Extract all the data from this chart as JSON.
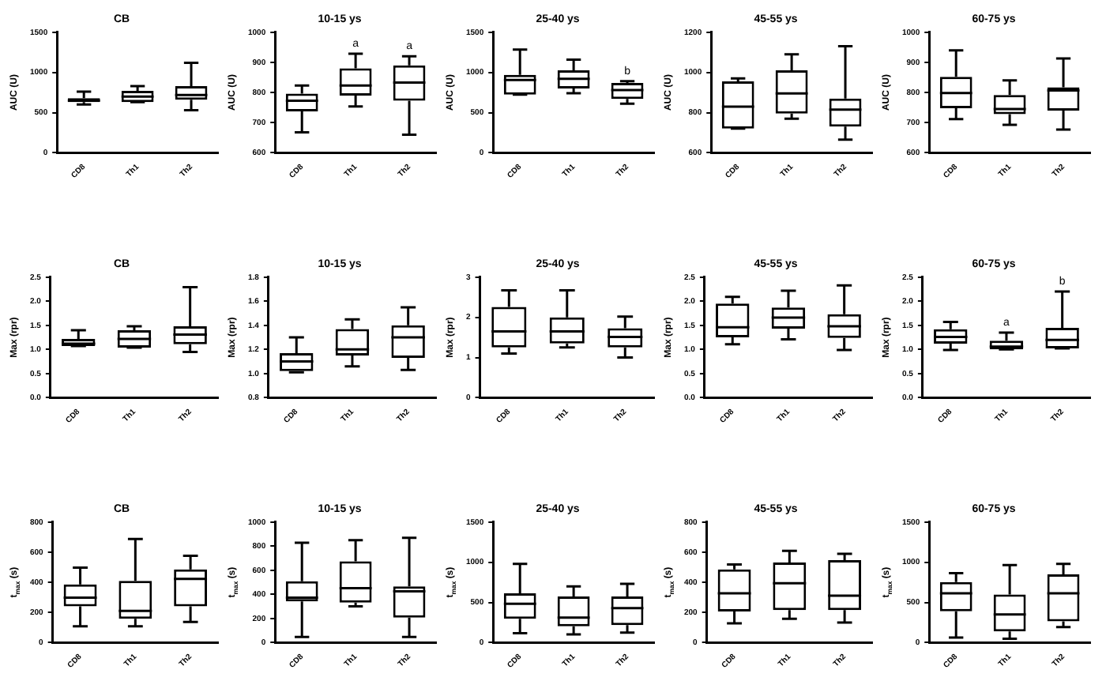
{
  "chart_data": [
    {
      "type": "box",
      "title": "CB",
      "ylabel": "AUC (U)",
      "categories": [
        "CD8",
        "Th1",
        "Th2"
      ],
      "ylim": [
        0,
        1500
      ],
      "yticks": [
        0,
        500,
        1000,
        1500
      ],
      "boxes": [
        {
          "low": 600,
          "q1": 630,
          "median": 650,
          "q3": 680,
          "high": 760
        },
        {
          "low": 630,
          "q1": 630,
          "median": 700,
          "q3": 770,
          "high": 830
        },
        {
          "low": 530,
          "q1": 660,
          "median": 720,
          "q3": 830,
          "high": 1120
        }
      ]
    },
    {
      "type": "box",
      "title": "10-15 ys",
      "ylabel": "AUC (U)",
      "categories": [
        "CD8",
        "Th1",
        "Th2"
      ],
      "ylim": [
        600,
        1000
      ],
      "yticks": [
        600,
        700,
        800,
        900,
        1000
      ],
      "boxes": [
        {
          "low": 668,
          "q1": 737,
          "median": 773,
          "q3": 796,
          "high": 823
        },
        {
          "low": 754,
          "q1": 790,
          "median": 823,
          "q3": 880,
          "high": 929
        },
        {
          "low": 660,
          "q1": 773,
          "median": 833,
          "q3": 890,
          "high": 920
        }
      ],
      "annotations": [
        {
          "text": "a",
          "x": "Th1",
          "y": 929
        },
        {
          "text": "a",
          "x": "Th2",
          "y": 920
        }
      ]
    },
    {
      "type": "box",
      "title": "25-40 ys",
      "ylabel": "AUC (U)",
      "categories": [
        "CD8",
        "Th1",
        "Th2"
      ],
      "ylim": [
        0,
        1500
      ],
      "yticks": [
        0,
        500,
        1000,
        1500
      ],
      "boxes": [
        {
          "low": 725,
          "q1": 725,
          "median": 905,
          "q3": 970,
          "high": 1285
        },
        {
          "low": 740,
          "q1": 800,
          "median": 920,
          "q3": 1025,
          "high": 1160
        },
        {
          "low": 610,
          "q1": 670,
          "median": 780,
          "q3": 870,
          "high": 890
        }
      ],
      "annotations": [
        {
          "text": "b",
          "x": "Th2",
          "y": 890
        }
      ]
    },
    {
      "type": "box",
      "title": "45-55 ys",
      "ylabel": "AUC (U)",
      "categories": [
        "CD8",
        "Th1",
        "Th2"
      ],
      "ylim": [
        600,
        1200
      ],
      "yticks": [
        600,
        800,
        1000,
        1200
      ],
      "boxes": [
        {
          "low": 720,
          "q1": 720,
          "median": 830,
          "q3": 955,
          "high": 970
        },
        {
          "low": 770,
          "q1": 795,
          "median": 895,
          "q3": 1010,
          "high": 1090
        },
        {
          "low": 665,
          "q1": 730,
          "median": 815,
          "q3": 870,
          "high": 1130
        }
      ]
    },
    {
      "type": "box",
      "title": "60-75 ys",
      "ylabel": "AUC (U)",
      "categories": [
        "CD8",
        "Th1",
        "Th2"
      ],
      "ylim": [
        600,
        1000
      ],
      "yticks": [
        600,
        700,
        800,
        900,
        1000
      ],
      "boxes": [
        {
          "low": 712,
          "q1": 748,
          "median": 798,
          "q3": 852,
          "high": 940
        },
        {
          "low": 693,
          "q1": 728,
          "median": 745,
          "q3": 792,
          "high": 840
        },
        {
          "low": 677,
          "q1": 740,
          "median": 807,
          "q3": 817,
          "high": 913
        }
      ]
    },
    {
      "type": "box",
      "title": "CB",
      "ylabel": "Max (rpr)",
      "categories": [
        "CD8",
        "Th1",
        "Th2"
      ],
      "ylim": [
        0,
        2.5
      ],
      "yticks": [
        {
          "value": 0,
          "label": "0.0"
        },
        0.5,
        {
          "value": 1,
          "label": "1.0"
        },
        1.5,
        {
          "value": 2,
          "label": "2.0"
        },
        2.5
      ],
      "boxes": [
        {
          "low": 1.07,
          "q1": 1.07,
          "median": 1.12,
          "q3": 1.22,
          "high": 1.4
        },
        {
          "low": 1.04,
          "q1": 1.04,
          "median": 1.22,
          "q3": 1.4,
          "high": 1.48
        },
        {
          "low": 0.95,
          "q1": 1.11,
          "median": 1.31,
          "q3": 1.48,
          "high": 2.29
        }
      ]
    },
    {
      "type": "box",
      "title": "10-15 ys",
      "ylabel": "Max (rpr)",
      "categories": [
        "CD8",
        "Th1",
        "Th2"
      ],
      "ylim": [
        0.8,
        1.8
      ],
      "yticks": [
        0.8,
        {
          "value": 1,
          "label": "1.0"
        },
        1.2,
        1.4,
        1.6,
        1.8
      ],
      "boxes": [
        {
          "low": 1.01,
          "q1": 1.02,
          "median": 1.1,
          "q3": 1.17,
          "high": 1.3
        },
        {
          "low": 1.06,
          "q1": 1.15,
          "median": 1.2,
          "q3": 1.37,
          "high": 1.45
        },
        {
          "low": 1.03,
          "q1": 1.13,
          "median": 1.3,
          "q3": 1.4,
          "high": 1.55
        }
      ]
    },
    {
      "type": "box",
      "title": "25-40 ys",
      "ylabel": "Max (rpr)",
      "categories": [
        "CD8",
        "Th1",
        "Th2"
      ],
      "ylim": [
        0,
        3
      ],
      "yticks": [
        0,
        1,
        2,
        3
      ],
      "boxes": [
        {
          "low": 1.1,
          "q1": 1.25,
          "median": 1.65,
          "q3": 2.26,
          "high": 2.67
        },
        {
          "low": 1.25,
          "q1": 1.35,
          "median": 1.65,
          "q3": 2.0,
          "high": 2.67
        },
        {
          "low": 1.0,
          "q1": 1.25,
          "median": 1.51,
          "q3": 1.73,
          "high": 2.02
        }
      ]
    },
    {
      "type": "box",
      "title": "45-55 ys",
      "ylabel": "Max (rpr)",
      "categories": [
        "CD8",
        "Th1",
        "Th2"
      ],
      "ylim": [
        0,
        2.5
      ],
      "yticks": [
        {
          "value": 0,
          "label": "0.0"
        },
        0.5,
        {
          "value": 1,
          "label": "1.0"
        },
        1.5,
        {
          "value": 2,
          "label": "2.0"
        },
        2.5
      ],
      "boxes": [
        {
          "low": 1.11,
          "q1": 1.25,
          "median": 1.46,
          "q3": 1.95,
          "high": 2.09
        },
        {
          "low": 1.21,
          "q1": 1.43,
          "median": 1.66,
          "q3": 1.87,
          "high": 2.22
        },
        {
          "low": 0.99,
          "q1": 1.24,
          "median": 1.48,
          "q3": 1.73,
          "high": 2.33
        }
      ]
    },
    {
      "type": "box",
      "title": "60-75 ys",
      "ylabel": "Max (rpr)",
      "categories": [
        "CD8",
        "Th1",
        "Th2"
      ],
      "ylim": [
        0,
        2.5
      ],
      "yticks": [
        {
          "value": 0,
          "label": "0.0"
        },
        0.5,
        {
          "value": 1,
          "label": "1.0"
        },
        1.5,
        {
          "value": 2,
          "label": "2.0"
        },
        2.5
      ],
      "boxes": [
        {
          "low": 0.99,
          "q1": 1.12,
          "median": 1.26,
          "q3": 1.42,
          "high": 1.57
        },
        {
          "low": 1.0,
          "q1": 1.0,
          "median": 1.06,
          "q3": 1.18,
          "high": 1.35
        },
        {
          "low": 1.02,
          "q1": 1.02,
          "median": 1.2,
          "q3": 1.45,
          "high": 2.2
        }
      ],
      "annotations": [
        {
          "text": "a",
          "x": "Th1",
          "y": 1.35
        },
        {
          "text": "b",
          "x": "Th2",
          "y": 2.2
        }
      ]
    },
    {
      "type": "box",
      "title": "CB",
      "ylabel": "t$_{max}$ (s)",
      "categories": [
        "CD8",
        "Th1",
        "Th2"
      ],
      "ylim": [
        0,
        800
      ],
      "yticks": [
        0,
        200,
        400,
        600,
        800
      ],
      "boxes": [
        {
          "low": 108,
          "q1": 240,
          "median": 298,
          "q3": 386,
          "high": 497
        },
        {
          "low": 108,
          "q1": 158,
          "median": 211,
          "q3": 410,
          "high": 688
        },
        {
          "low": 137,
          "q1": 240,
          "median": 423,
          "q3": 485,
          "high": 576
        }
      ]
    },
    {
      "type": "box",
      "title": "10-15 ys",
      "ylabel": "t$_{max}$ (s)",
      "categories": [
        "CD8",
        "Th1",
        "Th2"
      ],
      "ylim": [
        0,
        1000
      ],
      "yticks": [
        0,
        200,
        400,
        600,
        800,
        1000
      ],
      "boxes": [
        {
          "low": 47,
          "q1": 342,
          "median": 373,
          "q3": 508,
          "high": 829
        },
        {
          "low": 300,
          "q1": 332,
          "median": 451,
          "q3": 674,
          "high": 850
        },
        {
          "low": 47,
          "q1": 207,
          "median": 425,
          "q3": 466,
          "high": 870
        }
      ]
    },
    {
      "type": "box",
      "title": "25-40 ys",
      "ylabel": "t$_{max}$ (s)",
      "categories": [
        "CD8",
        "Th1",
        "Th2"
      ],
      "ylim": [
        0,
        1500
      ],
      "yticks": [
        0,
        500,
        1000,
        1500
      ],
      "boxes": [
        {
          "low": 117,
          "q1": 295,
          "median": 482,
          "q3": 614,
          "high": 980
        },
        {
          "low": 101,
          "q1": 202,
          "median": 311,
          "q3": 575,
          "high": 700
        },
        {
          "low": 124,
          "q1": 218,
          "median": 428,
          "q3": 575,
          "high": 731
        }
      ]
    },
    {
      "type": "box",
      "title": "45-55 ys",
      "ylabel": "t$_{max}$ (s)",
      "categories": [
        "CD8",
        "Th1",
        "Th2"
      ],
      "ylim": [
        0,
        800
      ],
      "yticks": [
        0,
        200,
        400,
        600,
        800
      ],
      "boxes": [
        {
          "low": 128,
          "q1": 207,
          "median": 327,
          "q3": 485,
          "high": 518
        },
        {
          "low": 158,
          "q1": 216,
          "median": 394,
          "q3": 531,
          "high": 609
        },
        {
          "low": 133,
          "q1": 216,
          "median": 311,
          "q3": 547,
          "high": 589
        }
      ]
    },
    {
      "type": "box",
      "title": "60-75 ys",
      "ylabel": "t$_{max}$ (s)",
      "categories": [
        "CD8",
        "Th1",
        "Th2"
      ],
      "ylim": [
        0,
        1500
      ],
      "yticks": [
        0,
        500,
        1000,
        1500
      ],
      "boxes": [
        {
          "low": 62,
          "q1": 389,
          "median": 614,
          "q3": 754,
          "high": 863
        },
        {
          "low": 47,
          "q1": 140,
          "median": 350,
          "q3": 599,
          "high": 964
        },
        {
          "low": 194,
          "q1": 264,
          "median": 614,
          "q3": 848,
          "high": 980
        }
      ]
    }
  ]
}
